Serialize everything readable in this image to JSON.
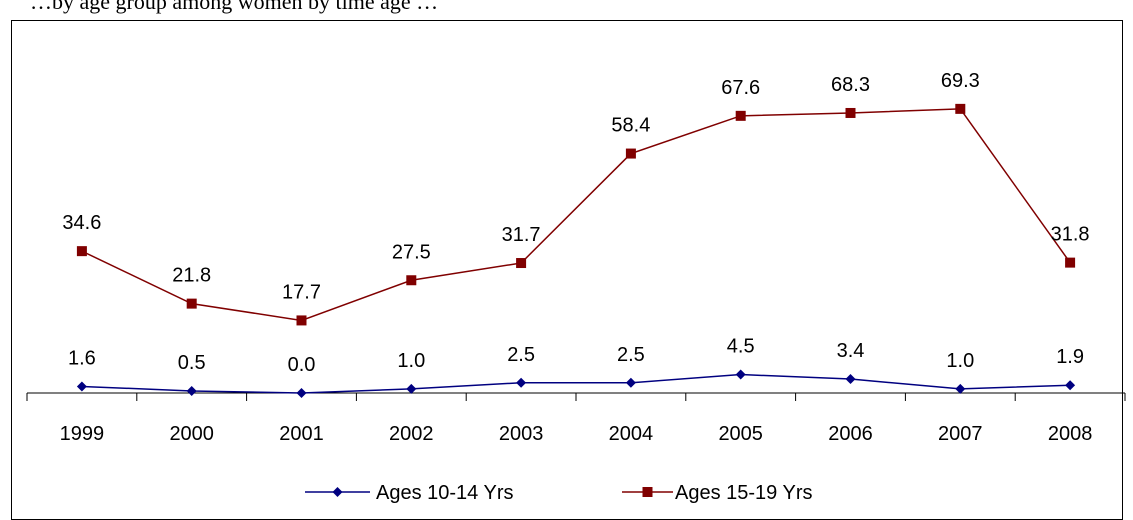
{
  "caption": "…by age group among women by time age …",
  "colors": {
    "series1": "#000080",
    "series2": "#800000",
    "axis": "#000000"
  },
  "chart_data": {
    "type": "line",
    "title": "",
    "xlabel": "",
    "ylabel": "",
    "categories": [
      "1999",
      "2000",
      "2001",
      "2002",
      "2003",
      "2004",
      "2005",
      "2006",
      "2007",
      "2008"
    ],
    "ylim": [
      0,
      75
    ],
    "grid": false,
    "legend": "bottom",
    "series": [
      {
        "name": "Ages 10-14 Yrs",
        "marker": "diamond",
        "values": [
          1.6,
          0.5,
          0.0,
          1.0,
          2.5,
          2.5,
          4.5,
          3.4,
          1.0,
          1.9
        ],
        "labels": [
          "1.6",
          "0.5",
          "0.0",
          "1.0",
          "2.5",
          "2.5",
          "4.5",
          "3.4",
          "1.0",
          "1.9"
        ]
      },
      {
        "name": "Ages 15-19 Yrs",
        "marker": "square",
        "values": [
          34.6,
          21.8,
          17.7,
          27.5,
          31.7,
          58.4,
          67.6,
          68.3,
          69.3,
          31.8
        ],
        "labels": [
          "34.6",
          "21.8",
          "17.7",
          "27.5",
          "31.7",
          "58.4",
          "67.6",
          "68.3",
          "69.3",
          "31.8"
        ]
      }
    ]
  }
}
